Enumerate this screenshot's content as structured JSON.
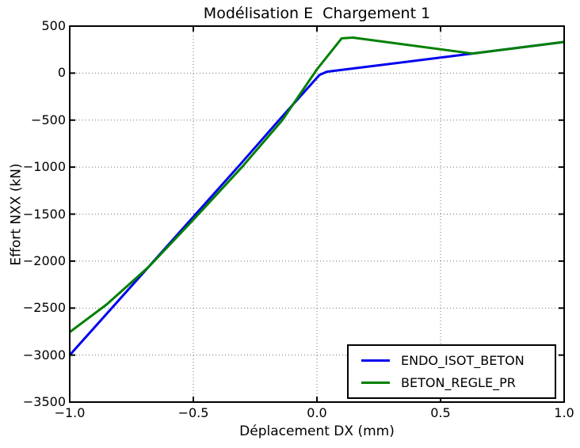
{
  "chart_data": {
    "type": "line",
    "title": "Modélisation E  Chargement 1",
    "xlabel": "Déplacement DX (mm)",
    "ylabel": "Effort NXX (kN)",
    "xlim": [
      -1.0,
      1.0
    ],
    "ylim": [
      -3500,
      500
    ],
    "xticks": [
      -1.0,
      -0.5,
      0.0,
      0.5,
      1.0
    ],
    "xtick_labels": [
      "−1.0",
      "−0.5",
      "0.0",
      "0.5",
      "1.0"
    ],
    "yticks": [
      500,
      0,
      -500,
      -1000,
      -1500,
      -2000,
      -2500,
      -3000,
      -3500
    ],
    "ytick_labels": [
      "500",
      "0",
      "−500",
      "−1000",
      "−1500",
      "−2000",
      "−2500",
      "−3000",
      "−3500"
    ],
    "grid": {
      "visible": true,
      "style": "dotted",
      "color": "#000000"
    },
    "frame_color": "#000000",
    "legend": {
      "position": "lower right"
    },
    "series": [
      {
        "name": "ENDO_ISOT_BETON",
        "color": "#0000ee",
        "points": [
          [
            -1.0,
            -3000
          ],
          [
            -0.31,
            -970
          ],
          [
            -0.15,
            -490
          ],
          [
            0.01,
            -20
          ],
          [
            0.04,
            15
          ],
          [
            0.63,
            208
          ],
          [
            1.0,
            332
          ]
        ]
      },
      {
        "name": "BETON_REGLE_PR",
        "color": "#008000",
        "points": [
          [
            -1.0,
            -2755
          ],
          [
            -0.85,
            -2460
          ],
          [
            -0.68,
            -2060
          ],
          [
            -0.5,
            -1560
          ],
          [
            -0.3,
            -990
          ],
          [
            -0.14,
            -500
          ],
          [
            0.0,
            40
          ],
          [
            0.1,
            370
          ],
          [
            0.145,
            378
          ],
          [
            0.63,
            208
          ],
          [
            1.0,
            332
          ]
        ]
      }
    ]
  }
}
